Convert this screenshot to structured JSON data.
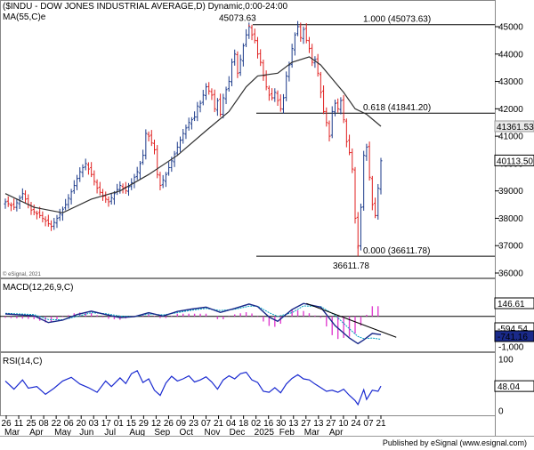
{
  "header": {
    "title": "($INDU - DOW JONES INDUSTRIAL AVERAGE,D) Dynamic,0:00-24:00",
    "ma_label": "MA(55,C)e",
    "watermark": "© eSignal, 2021"
  },
  "footer": {
    "text": "Published by eSignal (www.esignal.com)"
  },
  "chart_data": [
    {
      "type": "candlestick",
      "title": "($INDU - DOW JONES INDUSTRIAL AVERAGE,D) Dynamic,0:00-24:00",
      "ylim": [
        35600,
        45200
      ],
      "y_ticks": [
        36000,
        37000,
        38000,
        39000,
        40000,
        41000,
        42000,
        43000,
        44000,
        45000
      ],
      "x_labels": [
        {
          "day": "26",
          "month": "Mar"
        },
        {
          "day": "11",
          "month": ""
        },
        {
          "day": "25",
          "month": "Apr"
        },
        {
          "day": "08",
          "month": ""
        },
        {
          "day": "22",
          "month": "May"
        },
        {
          "day": "06",
          "month": ""
        },
        {
          "day": "20",
          "month": "Jun"
        },
        {
          "day": "03",
          "month": ""
        },
        {
          "day": "17",
          "month": "Jul"
        },
        {
          "day": "01",
          "month": ""
        },
        {
          "day": "15",
          "month": "Aug"
        },
        {
          "day": "29",
          "month": ""
        },
        {
          "day": "12",
          "month": "Sep"
        },
        {
          "day": "26",
          "month": ""
        },
        {
          "day": "09",
          "month": "Oct"
        },
        {
          "day": "23",
          "month": ""
        },
        {
          "day": "07",
          "month": "Nov"
        },
        {
          "day": "21",
          "month": ""
        },
        {
          "day": "04",
          "month": "Dec"
        },
        {
          "day": "18",
          "month": ""
        },
        {
          "day": "02",
          "month": "2025"
        },
        {
          "day": "16",
          "month": ""
        },
        {
          "day": "30",
          "month": "Feb"
        },
        {
          "day": "13",
          "month": ""
        },
        {
          "day": "27",
          "month": "Mar"
        },
        {
          "day": "13",
          "month": ""
        },
        {
          "day": "27",
          "month": "Apr"
        },
        {
          "day": "10",
          "month": ""
        },
        {
          "day": "24",
          "month": ""
        },
        {
          "day": "07",
          "month": ""
        },
        {
          "day": "21",
          "month": ""
        }
      ],
      "close_path": [
        [
          0,
          38600
        ],
        [
          3,
          38400
        ],
        [
          6,
          38900
        ],
        [
          9,
          38300
        ],
        [
          12,
          38100
        ],
        [
          14,
          37900
        ],
        [
          16,
          37700
        ],
        [
          18,
          38000
        ],
        [
          21,
          38500
        ],
        [
          24,
          39200
        ],
        [
          26,
          39700
        ],
        [
          28,
          40000
        ],
        [
          30,
          39600
        ],
        [
          32,
          39100
        ],
        [
          34,
          38800
        ],
        [
          36,
          38600
        ],
        [
          38,
          38900
        ],
        [
          40,
          39200
        ],
        [
          42,
          39000
        ],
        [
          44,
          39300
        ],
        [
          46,
          39700
        ],
        [
          48,
          40300
        ],
        [
          49,
          41100
        ],
        [
          50,
          41000
        ],
        [
          52,
          40500
        ],
        [
          53,
          39600
        ],
        [
          54,
          39200
        ],
        [
          56,
          39600
        ],
        [
          58,
          40100
        ],
        [
          60,
          40600
        ],
        [
          62,
          41100
        ],
        [
          64,
          41500
        ],
        [
          66,
          41700
        ],
        [
          67,
          42100
        ],
        [
          68,
          42200
        ],
        [
          70,
          42800
        ],
        [
          72,
          42500
        ],
        [
          73,
          42000
        ],
        [
          74,
          42300
        ],
        [
          75,
          41800
        ],
        [
          76,
          42400
        ],
        [
          78,
          43000
        ],
        [
          79,
          43700
        ],
        [
          80,
          44000
        ],
        [
          81,
          43300
        ],
        [
          82,
          43800
        ],
        [
          83,
          44300
        ],
        [
          84,
          44700
        ],
        [
          85,
          45000
        ],
        [
          86,
          44700
        ],
        [
          87,
          44500
        ],
        [
          88,
          44000
        ],
        [
          89,
          43700
        ],
        [
          90,
          43200
        ],
        [
          91,
          42800
        ],
        [
          92,
          42500
        ],
        [
          93,
          42400
        ],
        [
          94,
          42600
        ],
        [
          95,
          42300
        ],
        [
          96,
          42000
        ],
        [
          97,
          42400
        ],
        [
          98,
          43200
        ],
        [
          99,
          43600
        ],
        [
          100,
          44200
        ],
        [
          101,
          44700
        ],
        [
          102,
          45000
        ],
        [
          103,
          44600
        ],
        [
          104,
          44900
        ],
        [
          105,
          44500
        ],
        [
          106,
          44200
        ],
        [
          107,
          43700
        ],
        [
          108,
          43800
        ],
        [
          109,
          43300
        ],
        [
          110,
          42600
        ],
        [
          111,
          41900
        ],
        [
          112,
          41500
        ],
        [
          113,
          41000
        ],
        [
          114,
          41900
        ],
        [
          115,
          42200
        ],
        [
          116,
          42000
        ],
        [
          117,
          42300
        ],
        [
          118,
          41600
        ],
        [
          119,
          40800
        ],
        [
          120,
          40400
        ],
        [
          121,
          39800
        ],
        [
          122,
          38000
        ],
        [
          123,
          37000
        ],
        [
          124,
          38400
        ],
        [
          125,
          40300
        ],
        [
          126,
          40600
        ],
        [
          127,
          39500
        ],
        [
          128,
          38500
        ],
        [
          129,
          38100
        ],
        [
          130,
          39100
        ],
        [
          131,
          40100
        ]
      ],
      "ma_path": [
        [
          0,
          38900
        ],
        [
          10,
          38400
        ],
        [
          20,
          38200
        ],
        [
          30,
          38700
        ],
        [
          40,
          39000
        ],
        [
          50,
          39600
        ],
        [
          60,
          40300
        ],
        [
          70,
          41200
        ],
        [
          78,
          41900
        ],
        [
          84,
          42800
        ],
        [
          88,
          43200
        ],
        [
          95,
          43300
        ],
        [
          100,
          43700
        ],
        [
          106,
          43900
        ],
        [
          110,
          43600
        ],
        [
          114,
          43100
        ],
        [
          118,
          42600
        ],
        [
          122,
          42000
        ],
        [
          126,
          41800
        ],
        [
          131,
          41361.53
        ]
      ],
      "fib_lines": [
        {
          "level": "1.000",
          "value": 45073.63,
          "label": "1.000 (45073.63)"
        },
        {
          "level": "0.618",
          "value": 41841.2,
          "label": "0.618 (41841.20)"
        },
        {
          "level": "0.000",
          "value": 36611.78,
          "label": "0.000 (36611.78)"
        }
      ],
      "annotations": [
        {
          "text": "45073.63",
          "value": 45073.63
        },
        {
          "text": "36611.78",
          "value": 36611.78
        }
      ],
      "last_values": [
        {
          "label": "41361.53",
          "value": 41361.53,
          "kind": "ma"
        },
        {
          "label": "40113.50",
          "value": 40113.5,
          "kind": "price"
        }
      ],
      "colors": {
        "up": "#1b3a8a",
        "down": "#e02020",
        "ma": "#303030",
        "fib": "#000000"
      }
    },
    {
      "type": "line",
      "title": "MACD(12,26,9,C)",
      "ylim": [
        -1100,
        800
      ],
      "zero_line": 0,
      "y_ticks": [
        {
          "value": -1000,
          "label": "-1,000"
        }
      ],
      "macd_path": [
        [
          0,
          80
        ],
        [
          10,
          20
        ],
        [
          15,
          -200
        ],
        [
          20,
          -120
        ],
        [
          25,
          60
        ],
        [
          30,
          170
        ],
        [
          35,
          60
        ],
        [
          40,
          -40
        ],
        [
          45,
          -10
        ],
        [
          50,
          120
        ],
        [
          55,
          10
        ],
        [
          60,
          160
        ],
        [
          65,
          240
        ],
        [
          70,
          300
        ],
        [
          75,
          130
        ],
        [
          80,
          260
        ],
        [
          85,
          400
        ],
        [
          88,
          320
        ],
        [
          92,
          -20
        ],
        [
          95,
          -160
        ],
        [
          100,
          220
        ],
        [
          104,
          420
        ],
        [
          110,
          300
        ],
        [
          115,
          -300
        ],
        [
          120,
          -700
        ],
        [
          123,
          -880
        ],
        [
          125,
          -760
        ],
        [
          128,
          -550
        ],
        [
          131,
          -590
        ]
      ],
      "signal_path": [
        [
          0,
          100
        ],
        [
          10,
          60
        ],
        [
          15,
          -100
        ],
        [
          20,
          -110
        ],
        [
          25,
          0
        ],
        [
          30,
          120
        ],
        [
          35,
          90
        ],
        [
          40,
          10
        ],
        [
          45,
          -10
        ],
        [
          50,
          80
        ],
        [
          55,
          50
        ],
        [
          60,
          120
        ],
        [
          65,
          200
        ],
        [
          70,
          260
        ],
        [
          75,
          190
        ],
        [
          80,
          230
        ],
        [
          85,
          330
        ],
        [
          88,
          330
        ],
        [
          92,
          120
        ],
        [
          95,
          0
        ],
        [
          100,
          120
        ],
        [
          104,
          340
        ],
        [
          110,
          320
        ],
        [
          115,
          40
        ],
        [
          120,
          -400
        ],
        [
          123,
          -650
        ],
        [
          125,
          -720
        ],
        [
          128,
          -700
        ],
        [
          131,
          -741
        ]
      ],
      "trendline": [
        [
          105,
          420
        ],
        [
          132,
          -560
        ]
      ],
      "histogram_note": "histogram = macd - signal",
      "last_values": [
        {
          "label": "146.61",
          "kind": "histogram"
        },
        {
          "label": "-594.54",
          "kind": "macd"
        },
        {
          "label": "-741.16",
          "kind": "signal"
        }
      ],
      "colors": {
        "macd": "#1a2a8a",
        "signal": "#00a0c0",
        "histogram": "#e040d0"
      }
    },
    {
      "type": "line",
      "title": "RSI(14,C)",
      "ylim": [
        0,
        100
      ],
      "y_ticks": [
        0,
        50,
        100
      ],
      "rsi_path": [
        [
          0,
          58
        ],
        [
          3,
          42
        ],
        [
          6,
          60
        ],
        [
          8,
          44
        ],
        [
          11,
          47
        ],
        [
          14,
          32
        ],
        [
          17,
          44
        ],
        [
          20,
          58
        ],
        [
          23,
          65
        ],
        [
          26,
          52
        ],
        [
          29,
          45
        ],
        [
          32,
          36
        ],
        [
          35,
          58
        ],
        [
          37,
          47
        ],
        [
          40,
          64
        ],
        [
          42,
          53
        ],
        [
          44,
          72
        ],
        [
          46,
          78
        ],
        [
          48,
          55
        ],
        [
          50,
          62
        ],
        [
          52,
          40
        ],
        [
          54,
          30
        ],
        [
          56,
          54
        ],
        [
          58,
          67
        ],
        [
          60,
          58
        ],
        [
          62,
          62
        ],
        [
          64,
          68
        ],
        [
          66,
          56
        ],
        [
          68,
          60
        ],
        [
          70,
          66
        ],
        [
          72,
          56
        ],
        [
          74,
          42
        ],
        [
          76,
          60
        ],
        [
          78,
          68
        ],
        [
          80,
          62
        ],
        [
          82,
          72
        ],
        [
          84,
          75
        ],
        [
          86,
          60
        ],
        [
          88,
          55
        ],
        [
          90,
          38
        ],
        [
          92,
          36
        ],
        [
          94,
          45
        ],
        [
          96,
          35
        ],
        [
          98,
          52
        ],
        [
          100,
          63
        ],
        [
          102,
          70
        ],
        [
          104,
          62
        ],
        [
          106,
          60
        ],
        [
          108,
          52
        ],
        [
          110,
          45
        ],
        [
          112,
          38
        ],
        [
          114,
          40
        ],
        [
          116,
          36
        ],
        [
          118,
          42
        ],
        [
          120,
          30
        ],
        [
          122,
          20
        ],
        [
          123,
          12
        ],
        [
          125,
          41
        ],
        [
          126,
          22
        ],
        [
          128,
          40
        ],
        [
          130,
          38
        ],
        [
          131,
          48.04
        ]
      ],
      "last_values": [
        {
          "label": "48.04"
        }
      ],
      "colors": {
        "rsi": "#1a2ad0"
      }
    }
  ]
}
